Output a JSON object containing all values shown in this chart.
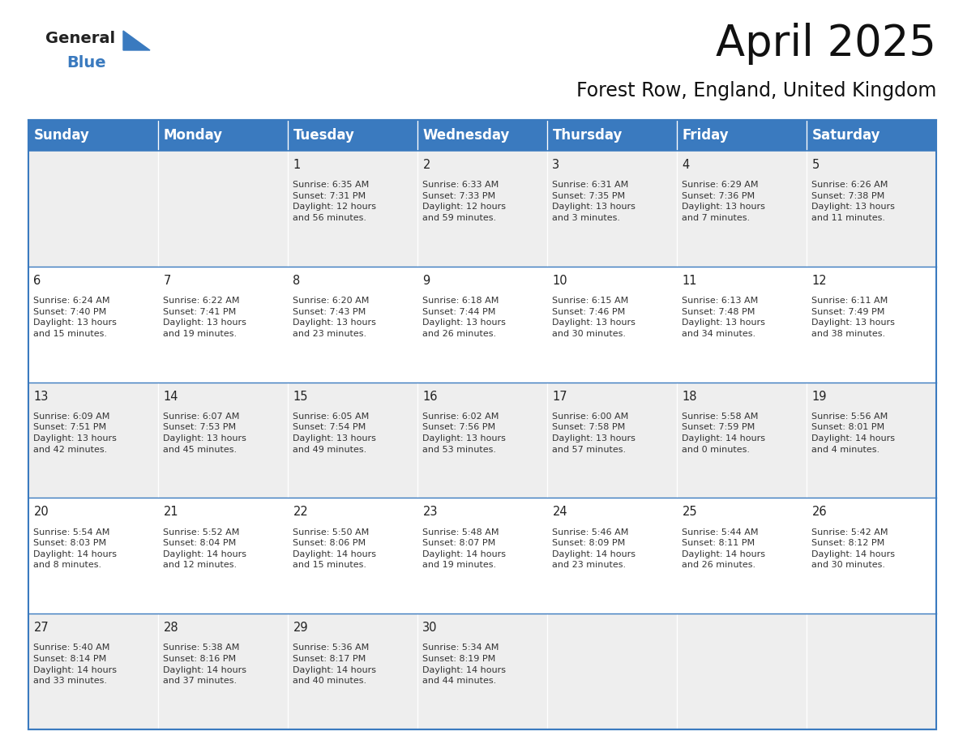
{
  "title": "April 2025",
  "subtitle": "Forest Row, England, United Kingdom",
  "header_color": "#3a7abf",
  "header_text_color": "#FFFFFF",
  "cell_bg_row0": "#eeeeee",
  "cell_bg_row1": "#ffffff",
  "cell_bg_row2": "#eeeeee",
  "cell_bg_row3": "#ffffff",
  "cell_bg_row4": "#eeeeee",
  "border_color": "#3a7abf",
  "row_line_color": "#3a7abf",
  "day_names": [
    "Sunday",
    "Monday",
    "Tuesday",
    "Wednesday",
    "Thursday",
    "Friday",
    "Saturday"
  ],
  "weeks": [
    [
      {
        "day": "",
        "text": ""
      },
      {
        "day": "",
        "text": ""
      },
      {
        "day": "1",
        "text": "Sunrise: 6:35 AM\nSunset: 7:31 PM\nDaylight: 12 hours\nand 56 minutes."
      },
      {
        "day": "2",
        "text": "Sunrise: 6:33 AM\nSunset: 7:33 PM\nDaylight: 12 hours\nand 59 minutes."
      },
      {
        "day": "3",
        "text": "Sunrise: 6:31 AM\nSunset: 7:35 PM\nDaylight: 13 hours\nand 3 minutes."
      },
      {
        "day": "4",
        "text": "Sunrise: 6:29 AM\nSunset: 7:36 PM\nDaylight: 13 hours\nand 7 minutes."
      },
      {
        "day": "5",
        "text": "Sunrise: 6:26 AM\nSunset: 7:38 PM\nDaylight: 13 hours\nand 11 minutes."
      }
    ],
    [
      {
        "day": "6",
        "text": "Sunrise: 6:24 AM\nSunset: 7:40 PM\nDaylight: 13 hours\nand 15 minutes."
      },
      {
        "day": "7",
        "text": "Sunrise: 6:22 AM\nSunset: 7:41 PM\nDaylight: 13 hours\nand 19 minutes."
      },
      {
        "day": "8",
        "text": "Sunrise: 6:20 AM\nSunset: 7:43 PM\nDaylight: 13 hours\nand 23 minutes."
      },
      {
        "day": "9",
        "text": "Sunrise: 6:18 AM\nSunset: 7:44 PM\nDaylight: 13 hours\nand 26 minutes."
      },
      {
        "day": "10",
        "text": "Sunrise: 6:15 AM\nSunset: 7:46 PM\nDaylight: 13 hours\nand 30 minutes."
      },
      {
        "day": "11",
        "text": "Sunrise: 6:13 AM\nSunset: 7:48 PM\nDaylight: 13 hours\nand 34 minutes."
      },
      {
        "day": "12",
        "text": "Sunrise: 6:11 AM\nSunset: 7:49 PM\nDaylight: 13 hours\nand 38 minutes."
      }
    ],
    [
      {
        "day": "13",
        "text": "Sunrise: 6:09 AM\nSunset: 7:51 PM\nDaylight: 13 hours\nand 42 minutes."
      },
      {
        "day": "14",
        "text": "Sunrise: 6:07 AM\nSunset: 7:53 PM\nDaylight: 13 hours\nand 45 minutes."
      },
      {
        "day": "15",
        "text": "Sunrise: 6:05 AM\nSunset: 7:54 PM\nDaylight: 13 hours\nand 49 minutes."
      },
      {
        "day": "16",
        "text": "Sunrise: 6:02 AM\nSunset: 7:56 PM\nDaylight: 13 hours\nand 53 minutes."
      },
      {
        "day": "17",
        "text": "Sunrise: 6:00 AM\nSunset: 7:58 PM\nDaylight: 13 hours\nand 57 minutes."
      },
      {
        "day": "18",
        "text": "Sunrise: 5:58 AM\nSunset: 7:59 PM\nDaylight: 14 hours\nand 0 minutes."
      },
      {
        "day": "19",
        "text": "Sunrise: 5:56 AM\nSunset: 8:01 PM\nDaylight: 14 hours\nand 4 minutes."
      }
    ],
    [
      {
        "day": "20",
        "text": "Sunrise: 5:54 AM\nSunset: 8:03 PM\nDaylight: 14 hours\nand 8 minutes."
      },
      {
        "day": "21",
        "text": "Sunrise: 5:52 AM\nSunset: 8:04 PM\nDaylight: 14 hours\nand 12 minutes."
      },
      {
        "day": "22",
        "text": "Sunrise: 5:50 AM\nSunset: 8:06 PM\nDaylight: 14 hours\nand 15 minutes."
      },
      {
        "day": "23",
        "text": "Sunrise: 5:48 AM\nSunset: 8:07 PM\nDaylight: 14 hours\nand 19 minutes."
      },
      {
        "day": "24",
        "text": "Sunrise: 5:46 AM\nSunset: 8:09 PM\nDaylight: 14 hours\nand 23 minutes."
      },
      {
        "day": "25",
        "text": "Sunrise: 5:44 AM\nSunset: 8:11 PM\nDaylight: 14 hours\nand 26 minutes."
      },
      {
        "day": "26",
        "text": "Sunrise: 5:42 AM\nSunset: 8:12 PM\nDaylight: 14 hours\nand 30 minutes."
      }
    ],
    [
      {
        "day": "27",
        "text": "Sunrise: 5:40 AM\nSunset: 8:14 PM\nDaylight: 14 hours\nand 33 minutes."
      },
      {
        "day": "28",
        "text": "Sunrise: 5:38 AM\nSunset: 8:16 PM\nDaylight: 14 hours\nand 37 minutes."
      },
      {
        "day": "29",
        "text": "Sunrise: 5:36 AM\nSunset: 8:17 PM\nDaylight: 14 hours\nand 40 minutes."
      },
      {
        "day": "30",
        "text": "Sunrise: 5:34 AM\nSunset: 8:19 PM\nDaylight: 14 hours\nand 44 minutes."
      },
      {
        "day": "",
        "text": ""
      },
      {
        "day": "",
        "text": ""
      },
      {
        "day": "",
        "text": ""
      }
    ]
  ],
  "logo_general_color": "#222222",
  "logo_blue_color": "#3a7abf",
  "title_fontsize": 38,
  "subtitle_fontsize": 17,
  "header_fontsize": 12,
  "day_num_fontsize": 10.5,
  "cell_text_fontsize": 8.0,
  "fig_width": 11.88,
  "fig_height": 9.18,
  "fig_dpi": 100
}
